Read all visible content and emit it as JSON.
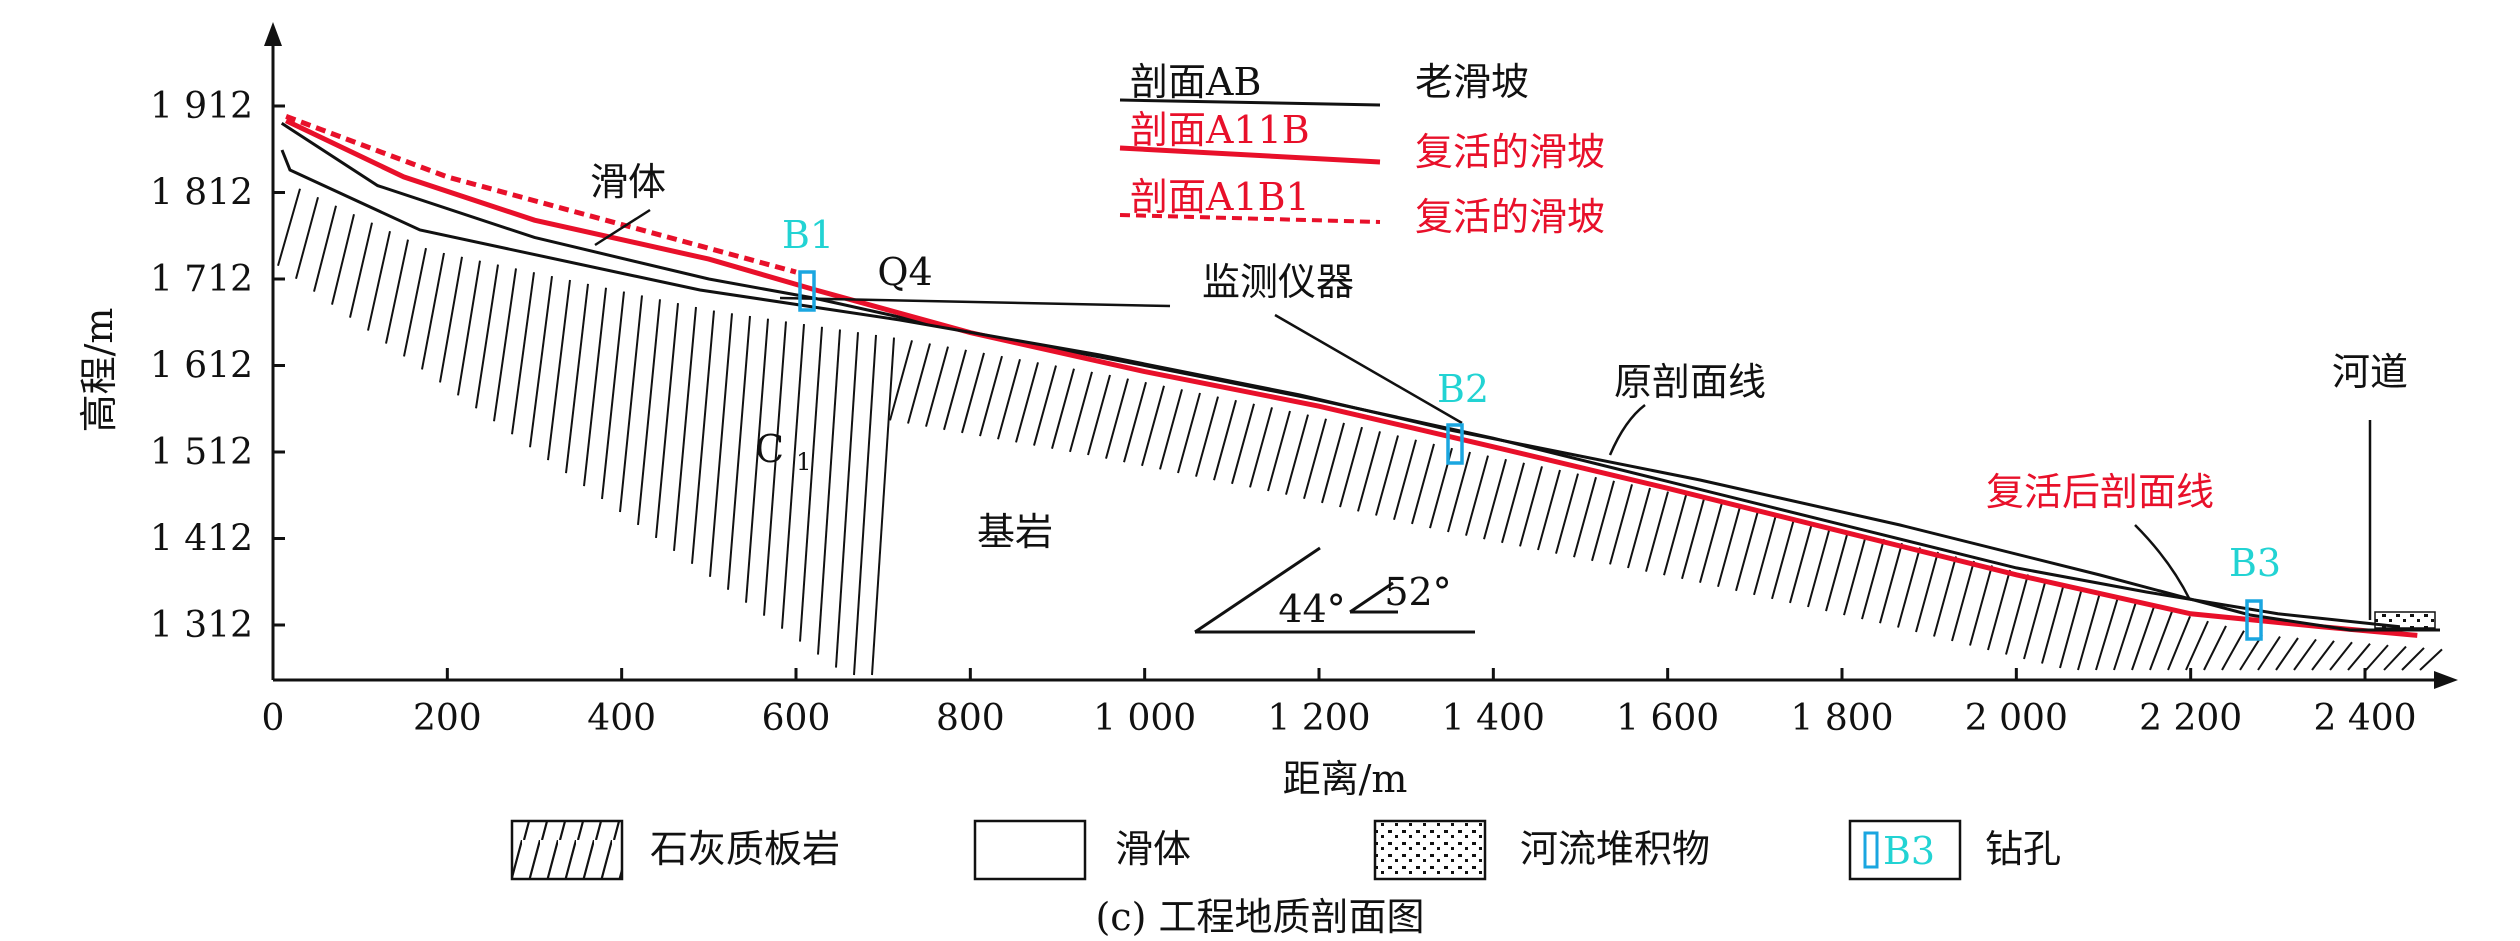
{
  "chart_data": {
    "type": "line",
    "xlabel": "距离/m",
    "ylabel": "高程/m",
    "xlim": [
      0,
      2520
    ],
    "ylim": [
      1240,
      1990
    ],
    "x_ticks": [
      "0",
      "200",
      "400",
      "600",
      "800",
      "1 000",
      "1 200",
      "1 400",
      "1 600",
      "1 800",
      "2 000",
      "2 200",
      "2 400"
    ],
    "y_ticks": [
      "1 312",
      "1 412",
      "1 512",
      "1 612",
      "1 712",
      "1 812",
      "1 912"
    ],
    "series": [
      {
        "name": "老滑坡",
        "color": "#111111",
        "points": [
          [
            10,
            1892
          ],
          [
            120,
            1820
          ],
          [
            300,
            1760
          ],
          [
            500,
            1712
          ],
          [
            620,
            1690
          ],
          [
            800,
            1650
          ],
          [
            1000,
            1612
          ],
          [
            1200,
            1572
          ],
          [
            1400,
            1528
          ],
          [
            1600,
            1478
          ],
          [
            1800,
            1428
          ],
          [
            2000,
            1378
          ],
          [
            2150,
            1350
          ],
          [
            2300,
            1325
          ],
          [
            2440,
            1310
          ]
        ]
      },
      {
        "name": "复活的滑坡",
        "color": "#e8102a",
        "points": [
          [
            15,
            1895
          ],
          [
            150,
            1830
          ],
          [
            300,
            1780
          ],
          [
            500,
            1735
          ],
          [
            620,
            1700
          ],
          [
            800,
            1650
          ],
          [
            1000,
            1605
          ],
          [
            1200,
            1565
          ],
          [
            1400,
            1518
          ],
          [
            1600,
            1470
          ],
          [
            1800,
            1420
          ],
          [
            2000,
            1370
          ],
          [
            2200,
            1325
          ],
          [
            2350,
            1310
          ],
          [
            2460,
            1300
          ]
        ]
      },
      {
        "name": "复活的滑坡",
        "color": "#e8102a",
        "dashed": true,
        "points": [
          [
            15,
            1900
          ],
          [
            200,
            1830
          ],
          [
            400,
            1775
          ],
          [
            600,
            1720
          ]
        ]
      }
    ]
  },
  "legend": {
    "rows": [
      {
        "profile": "剖面AB",
        "desc": "老滑坡",
        "color": "#111111"
      },
      {
        "profile": "剖面A11B",
        "desc": "复活的滑坡",
        "color": "#e8102a"
      },
      {
        "profile": "剖面A1B1",
        "desc": "复活的滑坡",
        "color": "#e8102a"
      }
    ]
  },
  "annotations": {
    "slide_body": "滑体",
    "q4": "Q4",
    "monitor": "监测仪器",
    "original_line": "原剖面线",
    "river": "河道",
    "revived_line": "复活后剖面线",
    "c1_main": "C",
    "c1_sub": "1",
    "bedrock": "基岩",
    "angle1": "44°",
    "angle2": "52°"
  },
  "boreholes": [
    "B1",
    "B2",
    "B3"
  ],
  "bottom_legend": {
    "limestone": "石灰质板岩",
    "slide": "滑体",
    "river_deposit": "河流堆积物",
    "borehole_sample": "B3",
    "borehole": "钻孔"
  },
  "caption": "(c) 工程地质剖面图"
}
